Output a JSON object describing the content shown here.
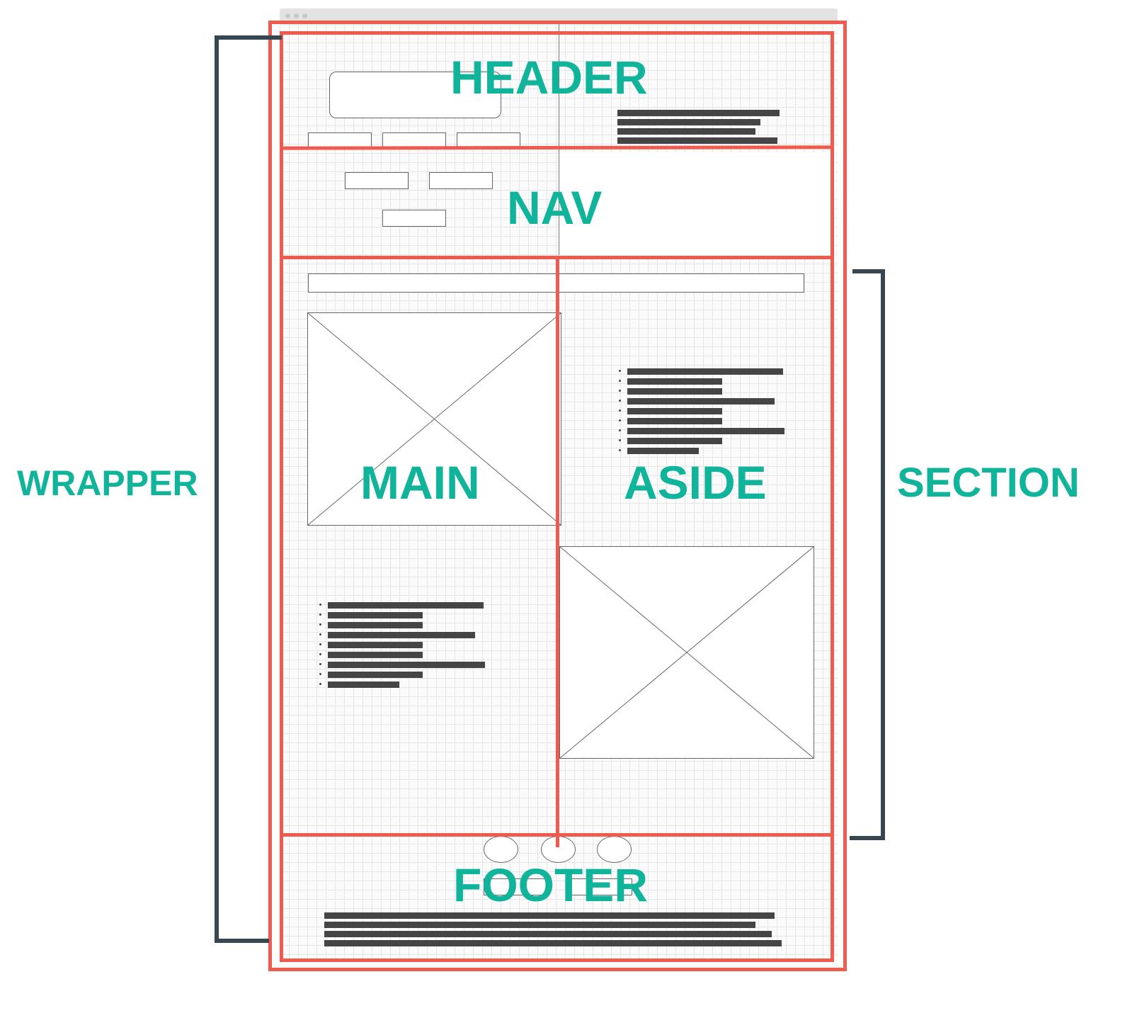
{
  "labels": {
    "header": "HEADER",
    "nav": "NAV",
    "main": "MAIN",
    "aside": "ASIDE",
    "footer": "FOOTER",
    "wrapper": "WRAPPER",
    "section": "SECTION"
  },
  "colors": {
    "label": "#10b49b",
    "outline": "#ef5b4f",
    "bracket": "#37474f",
    "placeholder_text": "#454545"
  }
}
